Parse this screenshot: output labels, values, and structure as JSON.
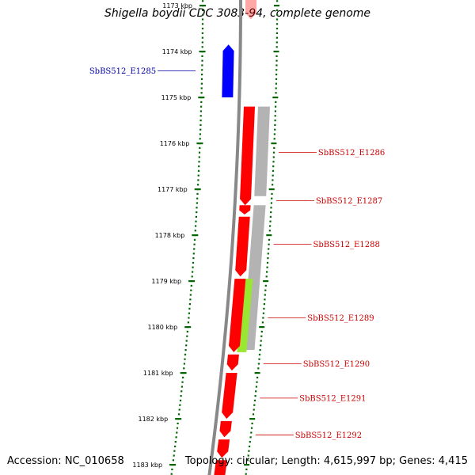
{
  "title": "Shigella boydii CDC 3083-94, complete genome",
  "accession_text": "Accession: NC_010658",
  "topology_text": "Topology: circular; Length: 4,615,997 bp; Genes: 4,415",
  "colors": {
    "backbone": "#888888",
    "forward_gene": "#ff0000",
    "reverse_gene": "#0000ff",
    "gray_feature": "#b3b3b3",
    "green_feature": "#99e633",
    "tick": "#006600",
    "fwd_label": "#cc0000",
    "rev_label": "#0000aa"
  },
  "ruler": {
    "unit": "kbp",
    "ticks": [
      {
        "value": 1173,
        "label": "1173 kbp"
      },
      {
        "value": 1174,
        "label": "1174 kbp"
      },
      {
        "value": 1175,
        "label": "1175 kbp"
      },
      {
        "value": 1176,
        "label": "1176 kbp"
      },
      {
        "value": 1177,
        "label": "1177 kbp"
      },
      {
        "value": 1178,
        "label": "1178 kbp"
      },
      {
        "value": 1179,
        "label": "1179 kbp"
      },
      {
        "value": 1180,
        "label": "1180 kbp"
      },
      {
        "value": 1181,
        "label": "1181 kbp"
      },
      {
        "value": 1182,
        "label": "1182 kbp"
      },
      {
        "value": 1183,
        "label": "1183 kbp"
      }
    ]
  },
  "genes": [
    {
      "strand": "reverse",
      "start": 1173.85,
      "end": 1175.0,
      "label": "SbBS512_E1285",
      "label_at": 1174.42
    },
    {
      "strand": "forward",
      "start": 1175.2,
      "end": 1177.35,
      "label": "SbBS512_E1286",
      "label_at": 1176.2
    },
    {
      "strand": "forward",
      "start": 1177.35,
      "end": 1177.55,
      "label": "SbBS512_E1287",
      "label_at": 1177.25
    },
    {
      "strand": "forward",
      "start": 1177.6,
      "end": 1178.9,
      "label": "SbBS512_E1288",
      "label_at": 1178.2
    },
    {
      "strand": "forward",
      "start": 1178.95,
      "end": 1180.55,
      "label": "SbBS512_E1289",
      "label_at": 1179.8
    },
    {
      "strand": "forward",
      "start": 1180.6,
      "end": 1180.95,
      "label": "SbBS512_E1290",
      "label_at": 1180.8
    },
    {
      "strand": "forward",
      "start": 1181.0,
      "end": 1182.0,
      "label": "SbBS512_E1291",
      "label_at": 1181.55
    },
    {
      "strand": "forward",
      "start": 1182.05,
      "end": 1182.4,
      "label": "SbBS512_E1292",
      "label_at": 1182.35
    },
    {
      "strand": "forward",
      "start": 1182.45,
      "end": 1182.85,
      "label": "",
      "label_at": null
    },
    {
      "strand": "forward",
      "start": 1182.9,
      "end": 1183.4,
      "label": "",
      "label_at": null
    },
    {
      "strand": "forward",
      "start": 1172.7,
      "end": 1173.3,
      "label": "",
      "label_at": null,
      "faded": true
    }
  ],
  "features": [
    {
      "color": "gray",
      "start": 1175.2,
      "end": 1177.15
    },
    {
      "color": "gray",
      "start": 1177.35,
      "end": 1180.5
    },
    {
      "color": "green",
      "start": 1178.95,
      "end": 1180.55
    }
  ]
}
